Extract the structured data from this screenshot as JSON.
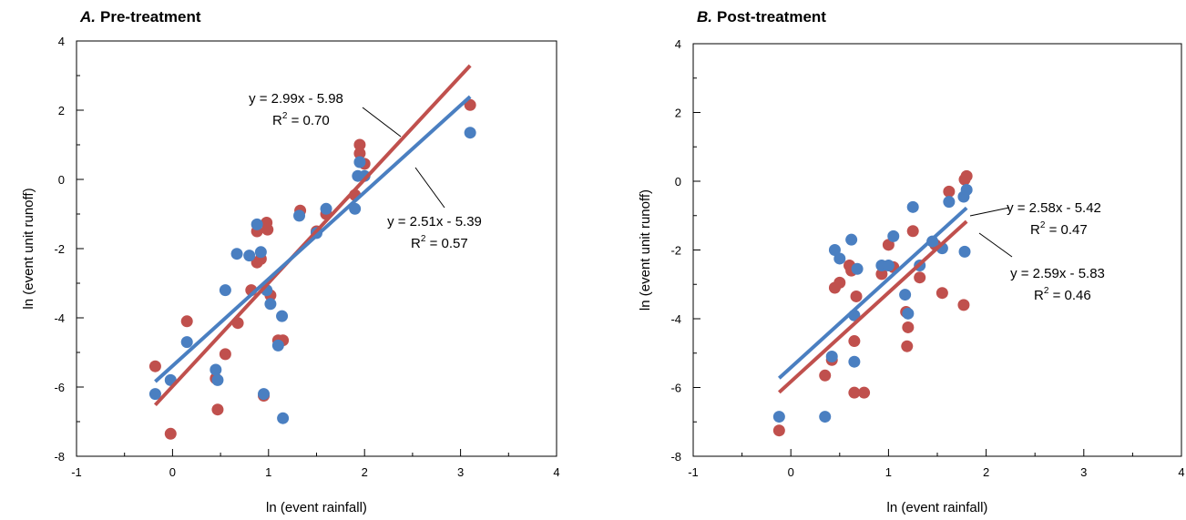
{
  "colors": {
    "series_a": "#4a7fc1",
    "series_b": "#c0504d",
    "axis": "#000000"
  },
  "chart_data": [
    {
      "type": "scatter",
      "panel_letter": "A.",
      "title": "Pre-treatment",
      "xlabel": "ln (event rainfall)",
      "ylabel": "ln (event unit runoff)",
      "xlim": [
        -1,
        4
      ],
      "ylim": [
        -8,
        4
      ],
      "xticks": [
        "-1",
        "0",
        "1",
        "2",
        "3",
        "4"
      ],
      "yticks": [
        "-8",
        "-6",
        "-4",
        "-2",
        "0",
        "2",
        "4"
      ],
      "grid": false,
      "series": [
        {
          "color": "#4a7fc1",
          "points": [
            [
              -0.18,
              -6.2
            ],
            [
              -0.02,
              -5.8
            ],
            [
              0.15,
              -4.7
            ],
            [
              0.45,
              -5.5
            ],
            [
              0.47,
              -5.8
            ],
            [
              0.55,
              -3.2
            ],
            [
              0.67,
              -2.15
            ],
            [
              0.8,
              -2.2
            ],
            [
              0.88,
              -1.3
            ],
            [
              0.92,
              -2.1
            ],
            [
              0.95,
              -6.2
            ],
            [
              0.98,
              -3.2
            ],
            [
              1.02,
              -3.6
            ],
            [
              1.1,
              -4.8
            ],
            [
              1.14,
              -3.95
            ],
            [
              1.15,
              -6.9
            ],
            [
              1.32,
              -1.05
            ],
            [
              1.5,
              -1.55
            ],
            [
              1.6,
              -0.85
            ],
            [
              1.9,
              -0.85
            ],
            [
              1.93,
              0.1
            ],
            [
              1.95,
              0.5
            ],
            [
              2.0,
              0.1
            ],
            [
              3.1,
              1.35
            ]
          ],
          "fit": {
            "slope": 2.51,
            "intercept": -5.39,
            "x_range": [
              -0.18,
              3.1
            ],
            "equation": "y = 2.51x - 5.39",
            "r2": "0.57"
          }
        },
        {
          "color": "#c0504d",
          "points": [
            [
              -0.18,
              -5.4
            ],
            [
              -0.02,
              -7.35
            ],
            [
              0.15,
              -4.1
            ],
            [
              0.45,
              -5.75
            ],
            [
              0.47,
              -6.65
            ],
            [
              0.55,
              -5.05
            ],
            [
              0.68,
              -4.15
            ],
            [
              0.82,
              -3.2
            ],
            [
              0.88,
              -1.5
            ],
            [
              0.88,
              -2.4
            ],
            [
              0.92,
              -2.3
            ],
            [
              0.95,
              -6.25
            ],
            [
              0.98,
              -1.25
            ],
            [
              0.99,
              -1.45
            ],
            [
              1.02,
              -3.35
            ],
            [
              1.1,
              -4.65
            ],
            [
              1.15,
              -4.65
            ],
            [
              1.33,
              -0.9
            ],
            [
              1.5,
              -1.5
            ],
            [
              1.6,
              -1.0
            ],
            [
              1.9,
              -0.45
            ],
            [
              1.95,
              0.75
            ],
            [
              1.95,
              1.0
            ],
            [
              2.0,
              0.45
            ],
            [
              3.1,
              2.15
            ]
          ],
          "fit": {
            "slope": 2.99,
            "intercept": -5.98,
            "x_range": [
              -0.18,
              3.1
            ],
            "equation": "y = 2.99x - 5.98",
            "r2": "0.70"
          }
        }
      ]
    },
    {
      "type": "scatter",
      "panel_letter": "B.",
      "title": "Post-treatment",
      "xlabel": "ln (event rainfall)",
      "ylabel": "ln (event unit runoff)",
      "xlim": [
        -1,
        4
      ],
      "ylim": [
        -8,
        4
      ],
      "xticks": [
        "-1",
        "0",
        "1",
        "2",
        "3",
        "4"
      ],
      "yticks": [
        "-8",
        "-6",
        "-4",
        "-2",
        "0",
        "2",
        "4"
      ],
      "grid": false,
      "series": [
        {
          "color": "#4a7fc1",
          "points": [
            [
              -0.12,
              -6.85
            ],
            [
              0.35,
              -6.85
            ],
            [
              0.42,
              -5.1
            ],
            [
              0.45,
              -2.0
            ],
            [
              0.5,
              -2.25
            ],
            [
              0.62,
              -1.7
            ],
            [
              0.65,
              -3.9
            ],
            [
              0.65,
              -5.25
            ],
            [
              0.68,
              -2.55
            ],
            [
              0.93,
              -2.45
            ],
            [
              1.0,
              -2.45
            ],
            [
              1.05,
              -1.6
            ],
            [
              1.17,
              -3.3
            ],
            [
              1.2,
              -3.85
            ],
            [
              1.25,
              -0.75
            ],
            [
              1.32,
              -2.45
            ],
            [
              1.45,
              -1.75
            ],
            [
              1.55,
              -1.95
            ],
            [
              1.62,
              -0.6
            ],
            [
              1.77,
              -0.45
            ],
            [
              1.78,
              -2.05
            ],
            [
              1.8,
              -0.25
            ]
          ],
          "fit": {
            "slope": 2.58,
            "intercept": -5.42,
            "x_range": [
              -0.12,
              1.8
            ],
            "equation": "y = 2.58x - 5.42",
            "r2": "0.47"
          }
        },
        {
          "color": "#c0504d",
          "points": [
            [
              -0.12,
              -7.25
            ],
            [
              0.35,
              -5.65
            ],
            [
              0.42,
              -5.2
            ],
            [
              0.45,
              -3.1
            ],
            [
              0.5,
              -2.95
            ],
            [
              0.6,
              -2.45
            ],
            [
              0.62,
              -2.6
            ],
            [
              0.65,
              -4.65
            ],
            [
              0.65,
              -6.15
            ],
            [
              0.67,
              -3.35
            ],
            [
              0.75,
              -6.15
            ],
            [
              0.93,
              -2.7
            ],
            [
              1.0,
              -1.85
            ],
            [
              1.05,
              -2.5
            ],
            [
              1.18,
              -3.8
            ],
            [
              1.19,
              -4.8
            ],
            [
              1.2,
              -4.25
            ],
            [
              1.25,
              -1.45
            ],
            [
              1.32,
              -2.8
            ],
            [
              1.48,
              -1.85
            ],
            [
              1.55,
              -3.25
            ],
            [
              1.62,
              -0.3
            ],
            [
              1.77,
              -3.6
            ],
            [
              1.78,
              0.05
            ],
            [
              1.8,
              0.15
            ]
          ],
          "fit": {
            "slope": 2.59,
            "intercept": -5.83,
            "x_range": [
              -0.12,
              1.8
            ],
            "equation": "y = 2.59x - 5.83",
            "r2": "0.46"
          }
        }
      ]
    }
  ]
}
